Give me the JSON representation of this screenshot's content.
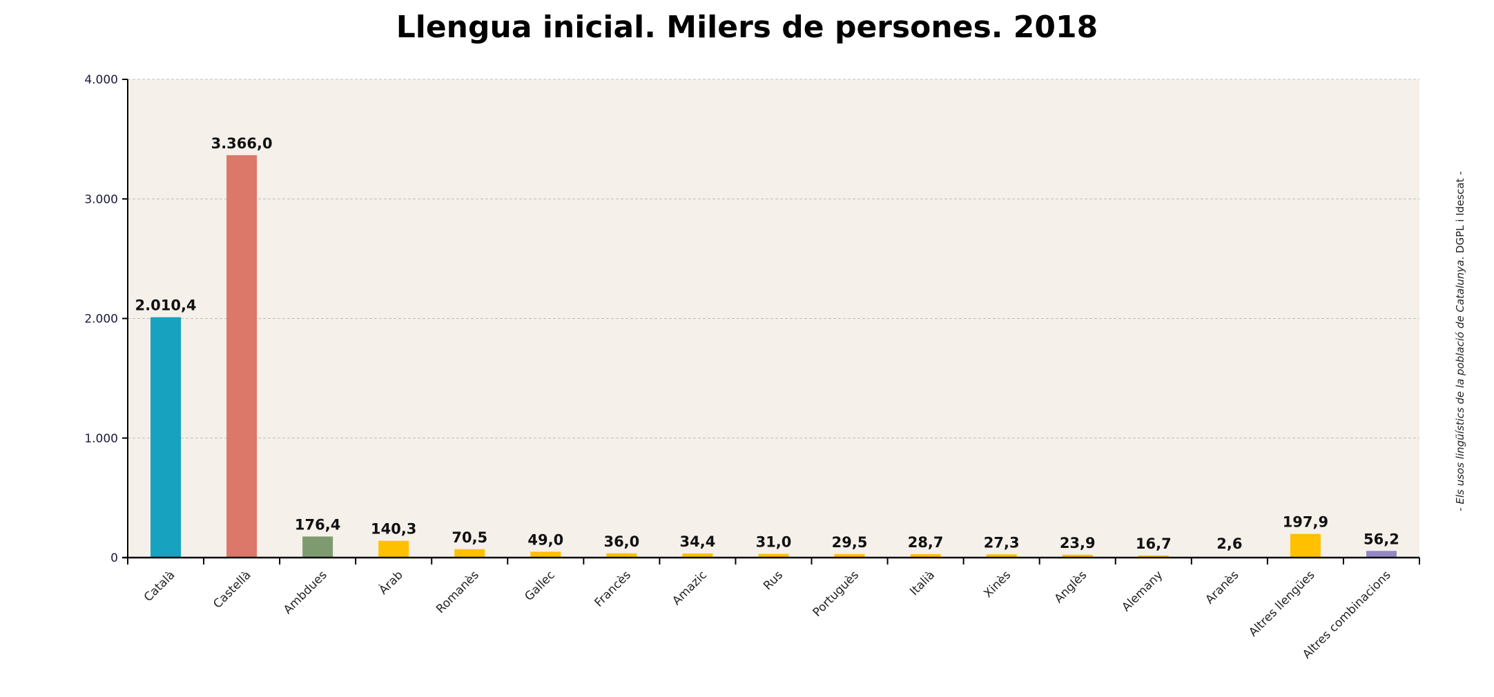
{
  "chart_data": {
    "type": "bar",
    "title": "Llengua inicial. Milers de persones. 2018",
    "xlabel": "",
    "ylabel": "",
    "ylim": [
      0,
      4000
    ],
    "yticks": [
      0,
      1000,
      2000,
      3000,
      4000
    ],
    "ytick_labels": [
      "0",
      "1.000",
      "2.000",
      "3.000",
      "4.000"
    ],
    "grid": true,
    "categories": [
      "Català",
      "Castellà",
      "Ambdues",
      "Àrab",
      "Romanès",
      "Gallec",
      "Francès",
      "Amazic",
      "Rus",
      "Portuguès",
      "Italià",
      "Xinès",
      "Anglès",
      "Alemany",
      "Aranès",
      "Altres llengües",
      "Altres combinacions"
    ],
    "values": [
      2010.4,
      3366.0,
      176.4,
      140.3,
      70.5,
      49.0,
      36.0,
      34.4,
      31.0,
      29.5,
      28.7,
      27.3,
      23.9,
      16.7,
      2.6,
      197.9,
      56.2
    ],
    "value_labels": [
      "2.010,4",
      "3.366,0",
      "176,4",
      "140,3",
      "70,5",
      "49,0",
      "36,0",
      "34,4",
      "31,0",
      "29,5",
      "28,7",
      "27,3",
      "23,9",
      "16,7",
      "2,6",
      "197,9",
      "56,2"
    ],
    "colors": [
      "#17a2bf",
      "#db786a",
      "#7d9b6f",
      "#ffc000",
      "#ffc000",
      "#ffc000",
      "#ffc000",
      "#ffc000",
      "#ffc000",
      "#ffc000",
      "#ffc000",
      "#ffc000",
      "#ffc000",
      "#ffc000",
      "#ffc000",
      "#ffc000",
      "#9488c4"
    ],
    "plot_background": "#f5f0ea",
    "source_note": {
      "prefix": "- ",
      "italic": "Els usos lingüístics de la població de Catalunya",
      "suffix": ". DGPL i Idescat -"
    }
  }
}
